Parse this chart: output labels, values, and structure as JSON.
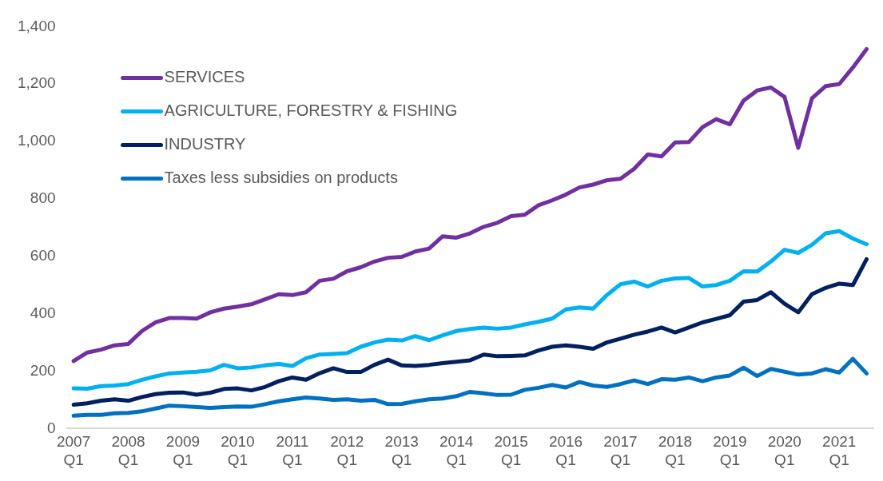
{
  "chart_data": {
    "type": "line",
    "categories": [
      "2007\nQ1",
      null,
      null,
      null,
      "2008\nQ1",
      null,
      null,
      null,
      "2009\nQ1",
      null,
      null,
      null,
      "2010\nQ1",
      null,
      null,
      null,
      "2011\nQ1",
      null,
      null,
      null,
      "2012\nQ1",
      null,
      null,
      null,
      "2013\nQ1",
      null,
      null,
      null,
      "2014\nQ1",
      null,
      null,
      null,
      "2015\nQ1",
      null,
      null,
      null,
      "2016\nQ1",
      null,
      null,
      null,
      "2017\nQ1",
      null,
      null,
      null,
      "2018\nQ1",
      null,
      null,
      null,
      "2019\nQ1",
      null,
      null,
      null,
      "2020\nQ1",
      null,
      null,
      null,
      "2021\nQ1",
      null,
      null
    ],
    "series": [
      {
        "name": "SERVICES",
        "color": "#7030a0",
        "values": [
          235,
          265,
          275,
          290,
          295,
          340,
          370,
          385,
          385,
          383,
          405,
          418,
          425,
          433,
          450,
          468,
          465,
          475,
          515,
          522,
          548,
          562,
          582,
          595,
          598,
          617,
          627,
          670,
          665,
          680,
          703,
          717,
          740,
          745,
          778,
          795,
          815,
          840,
          850,
          865,
          870,
          905,
          955,
          948,
          997,
          998,
          1050,
          1078,
          1060,
          1142,
          1178,
          1188,
          1155,
          978,
          1150,
          1193,
          1200,
          1258,
          1322
        ]
      },
      {
        "name": "AGRICULTURE, FORESTRY & FISHING",
        "color": "#00b0f0",
        "values": [
          140,
          139,
          148,
          150,
          155,
          170,
          182,
          192,
          195,
          198,
          203,
          222,
          210,
          213,
          220,
          225,
          218,
          245,
          258,
          260,
          263,
          285,
          300,
          310,
          307,
          322,
          308,
          325,
          340,
          347,
          352,
          348,
          352,
          363,
          372,
          383,
          415,
          422,
          418,
          465,
          503,
          512,
          495,
          515,
          523,
          525,
          495,
          500,
          515,
          548,
          547,
          582,
          623,
          612,
          640,
          680,
          688,
          662,
          642
        ]
      },
      {
        "name": "INDUSTRY",
        "color": "#002060",
        "values": [
          83,
          88,
          97,
          102,
          97,
          110,
          120,
          125,
          126,
          118,
          125,
          138,
          140,
          133,
          145,
          165,
          178,
          170,
          193,
          210,
          197,
          197,
          222,
          240,
          220,
          218,
          222,
          228,
          233,
          238,
          258,
          252,
          253,
          255,
          272,
          285,
          290,
          285,
          278,
          300,
          313,
          327,
          338,
          352,
          335,
          352,
          370,
          382,
          395,
          442,
          448,
          475,
          435,
          405,
          468,
          490,
          505,
          500,
          590
        ]
      },
      {
        "name": "Taxes less subsidies on products",
        "color": "#0070c0",
        "values": [
          45,
          48,
          48,
          53,
          55,
          60,
          70,
          80,
          78,
          75,
          72,
          75,
          77,
          76,
          85,
          95,
          102,
          108,
          105,
          100,
          102,
          97,
          100,
          85,
          86,
          95,
          102,
          105,
          113,
          128,
          123,
          117,
          118,
          135,
          142,
          152,
          143,
          162,
          150,
          145,
          155,
          168,
          155,
          172,
          170,
          178,
          165,
          178,
          185,
          212,
          183,
          208,
          198,
          188,
          192,
          207,
          195,
          243,
          192
        ]
      }
    ],
    "ylim": [
      0,
      1400
    ],
    "yticks": [
      0,
      200,
      400,
      600,
      800,
      {
        "value": 1000,
        "label": "1,000"
      },
      {
        "value": 1200,
        "label": "1,200"
      },
      {
        "value": 1400,
        "label": "1,400"
      }
    ],
    "grid": false,
    "legend": "top left",
    "marker": "none",
    "line_style": "solid"
  }
}
